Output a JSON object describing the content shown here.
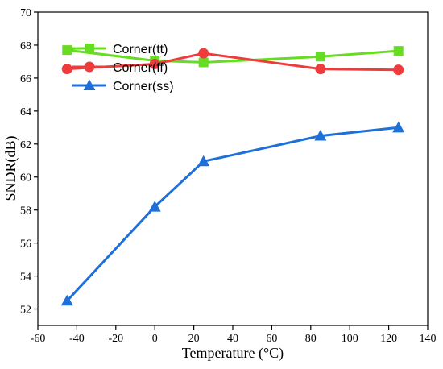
{
  "chart_data": {
    "type": "line",
    "xlabel": "Temperature (°C)",
    "ylabel": "SNDR(dB)",
    "xlim": [
      -60,
      140
    ],
    "ylim": [
      51,
      70
    ],
    "xticks": [
      -60,
      -40,
      -20,
      0,
      20,
      40,
      60,
      80,
      100,
      120,
      140
    ],
    "yticks": [
      52,
      54,
      56,
      58,
      60,
      62,
      64,
      66,
      68,
      70
    ],
    "x": [
      -45,
      0,
      25,
      85,
      125
    ],
    "series": [
      {
        "name": "Corner(tt)",
        "values": [
          67.7,
          67.05,
          66.95,
          67.3,
          67.65
        ],
        "color": "#66dd22",
        "marker": "square"
      },
      {
        "name": "Corner(ff)",
        "values": [
          66.55,
          66.85,
          67.5,
          66.55,
          66.5
        ],
        "color": "#ee3b3b",
        "marker": "circle"
      },
      {
        "name": "Corner(ss)",
        "values": [
          52.5,
          58.2,
          60.95,
          62.5,
          63.0
        ],
        "color": "#1e6fd9",
        "marker": "triangle"
      }
    ],
    "legend_position": "upper-left",
    "grid": false
  }
}
